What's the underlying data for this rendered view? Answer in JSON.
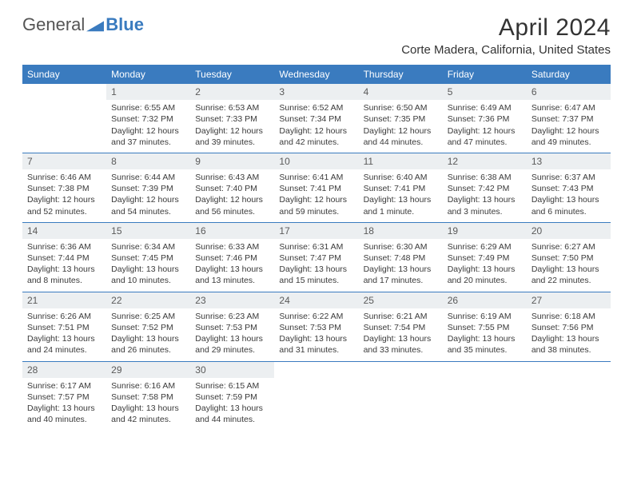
{
  "brand": {
    "part1": "General",
    "part2": "Blue"
  },
  "title": "April 2024",
  "location": "Corte Madera, California, United States",
  "colors": {
    "header_bg": "#3a7bbf",
    "header_fg": "#ffffff",
    "daynum_bg": "#eceff1",
    "rule": "#3a7bbf",
    "text": "#333333",
    "page_bg": "#ffffff"
  },
  "weekdays": [
    "Sunday",
    "Monday",
    "Tuesday",
    "Wednesday",
    "Thursday",
    "Friday",
    "Saturday"
  ],
  "weeks": [
    [
      {
        "day": "",
        "lines": []
      },
      {
        "day": "1",
        "lines": [
          "Sunrise: 6:55 AM",
          "Sunset: 7:32 PM",
          "Daylight: 12 hours",
          "and 37 minutes."
        ]
      },
      {
        "day": "2",
        "lines": [
          "Sunrise: 6:53 AM",
          "Sunset: 7:33 PM",
          "Daylight: 12 hours",
          "and 39 minutes."
        ]
      },
      {
        "day": "3",
        "lines": [
          "Sunrise: 6:52 AM",
          "Sunset: 7:34 PM",
          "Daylight: 12 hours",
          "and 42 minutes."
        ]
      },
      {
        "day": "4",
        "lines": [
          "Sunrise: 6:50 AM",
          "Sunset: 7:35 PM",
          "Daylight: 12 hours",
          "and 44 minutes."
        ]
      },
      {
        "day": "5",
        "lines": [
          "Sunrise: 6:49 AM",
          "Sunset: 7:36 PM",
          "Daylight: 12 hours",
          "and 47 minutes."
        ]
      },
      {
        "day": "6",
        "lines": [
          "Sunrise: 6:47 AM",
          "Sunset: 7:37 PM",
          "Daylight: 12 hours",
          "and 49 minutes."
        ]
      }
    ],
    [
      {
        "day": "7",
        "lines": [
          "Sunrise: 6:46 AM",
          "Sunset: 7:38 PM",
          "Daylight: 12 hours",
          "and 52 minutes."
        ]
      },
      {
        "day": "8",
        "lines": [
          "Sunrise: 6:44 AM",
          "Sunset: 7:39 PM",
          "Daylight: 12 hours",
          "and 54 minutes."
        ]
      },
      {
        "day": "9",
        "lines": [
          "Sunrise: 6:43 AM",
          "Sunset: 7:40 PM",
          "Daylight: 12 hours",
          "and 56 minutes."
        ]
      },
      {
        "day": "10",
        "lines": [
          "Sunrise: 6:41 AM",
          "Sunset: 7:41 PM",
          "Daylight: 12 hours",
          "and 59 minutes."
        ]
      },
      {
        "day": "11",
        "lines": [
          "Sunrise: 6:40 AM",
          "Sunset: 7:41 PM",
          "Daylight: 13 hours",
          "and 1 minute."
        ]
      },
      {
        "day": "12",
        "lines": [
          "Sunrise: 6:38 AM",
          "Sunset: 7:42 PM",
          "Daylight: 13 hours",
          "and 3 minutes."
        ]
      },
      {
        "day": "13",
        "lines": [
          "Sunrise: 6:37 AM",
          "Sunset: 7:43 PM",
          "Daylight: 13 hours",
          "and 6 minutes."
        ]
      }
    ],
    [
      {
        "day": "14",
        "lines": [
          "Sunrise: 6:36 AM",
          "Sunset: 7:44 PM",
          "Daylight: 13 hours",
          "and 8 minutes."
        ]
      },
      {
        "day": "15",
        "lines": [
          "Sunrise: 6:34 AM",
          "Sunset: 7:45 PM",
          "Daylight: 13 hours",
          "and 10 minutes."
        ]
      },
      {
        "day": "16",
        "lines": [
          "Sunrise: 6:33 AM",
          "Sunset: 7:46 PM",
          "Daylight: 13 hours",
          "and 13 minutes."
        ]
      },
      {
        "day": "17",
        "lines": [
          "Sunrise: 6:31 AM",
          "Sunset: 7:47 PM",
          "Daylight: 13 hours",
          "and 15 minutes."
        ]
      },
      {
        "day": "18",
        "lines": [
          "Sunrise: 6:30 AM",
          "Sunset: 7:48 PM",
          "Daylight: 13 hours",
          "and 17 minutes."
        ]
      },
      {
        "day": "19",
        "lines": [
          "Sunrise: 6:29 AM",
          "Sunset: 7:49 PM",
          "Daylight: 13 hours",
          "and 20 minutes."
        ]
      },
      {
        "day": "20",
        "lines": [
          "Sunrise: 6:27 AM",
          "Sunset: 7:50 PM",
          "Daylight: 13 hours",
          "and 22 minutes."
        ]
      }
    ],
    [
      {
        "day": "21",
        "lines": [
          "Sunrise: 6:26 AM",
          "Sunset: 7:51 PM",
          "Daylight: 13 hours",
          "and 24 minutes."
        ]
      },
      {
        "day": "22",
        "lines": [
          "Sunrise: 6:25 AM",
          "Sunset: 7:52 PM",
          "Daylight: 13 hours",
          "and 26 minutes."
        ]
      },
      {
        "day": "23",
        "lines": [
          "Sunrise: 6:23 AM",
          "Sunset: 7:53 PM",
          "Daylight: 13 hours",
          "and 29 minutes."
        ]
      },
      {
        "day": "24",
        "lines": [
          "Sunrise: 6:22 AM",
          "Sunset: 7:53 PM",
          "Daylight: 13 hours",
          "and 31 minutes."
        ]
      },
      {
        "day": "25",
        "lines": [
          "Sunrise: 6:21 AM",
          "Sunset: 7:54 PM",
          "Daylight: 13 hours",
          "and 33 minutes."
        ]
      },
      {
        "day": "26",
        "lines": [
          "Sunrise: 6:19 AM",
          "Sunset: 7:55 PM",
          "Daylight: 13 hours",
          "and 35 minutes."
        ]
      },
      {
        "day": "27",
        "lines": [
          "Sunrise: 6:18 AM",
          "Sunset: 7:56 PM",
          "Daylight: 13 hours",
          "and 38 minutes."
        ]
      }
    ],
    [
      {
        "day": "28",
        "lines": [
          "Sunrise: 6:17 AM",
          "Sunset: 7:57 PM",
          "Daylight: 13 hours",
          "and 40 minutes."
        ]
      },
      {
        "day": "29",
        "lines": [
          "Sunrise: 6:16 AM",
          "Sunset: 7:58 PM",
          "Daylight: 13 hours",
          "and 42 minutes."
        ]
      },
      {
        "day": "30",
        "lines": [
          "Sunrise: 6:15 AM",
          "Sunset: 7:59 PM",
          "Daylight: 13 hours",
          "and 44 minutes."
        ]
      },
      {
        "day": "",
        "lines": []
      },
      {
        "day": "",
        "lines": []
      },
      {
        "day": "",
        "lines": []
      },
      {
        "day": "",
        "lines": []
      }
    ]
  ]
}
